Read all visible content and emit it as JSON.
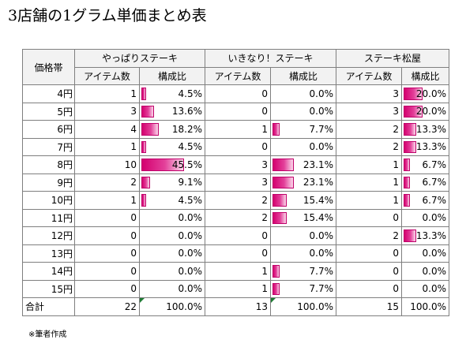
{
  "title": "3店舗の1グラム単価まとめ表",
  "table": {
    "row_header": "価格帯",
    "stores": [
      "やっぱりステーキ",
      "いきなり！ステーキ",
      "ステーキ松屋"
    ],
    "sub_headers": [
      "アイテム数",
      "構成比"
    ],
    "rows": [
      {
        "label": "4円",
        "cells": [
          {
            "count": "1",
            "pct": "4.5%",
            "v": 4.5
          },
          {
            "count": "0",
            "pct": "0.0%",
            "v": 0
          },
          {
            "count": "3",
            "pct": "20.0%",
            "v": 20.0
          }
        ]
      },
      {
        "label": "5円",
        "cells": [
          {
            "count": "3",
            "pct": "13.6%",
            "v": 13.6
          },
          {
            "count": "0",
            "pct": "0.0%",
            "v": 0
          },
          {
            "count": "3",
            "pct": "20.0%",
            "v": 20.0
          }
        ]
      },
      {
        "label": "6円",
        "cells": [
          {
            "count": "4",
            "pct": "18.2%",
            "v": 18.2
          },
          {
            "count": "1",
            "pct": "7.7%",
            "v": 7.7
          },
          {
            "count": "2",
            "pct": "13.3%",
            "v": 13.3
          }
        ]
      },
      {
        "label": "7円",
        "cells": [
          {
            "count": "1",
            "pct": "4.5%",
            "v": 4.5
          },
          {
            "count": "0",
            "pct": "0.0%",
            "v": 0
          },
          {
            "count": "2",
            "pct": "13.3%",
            "v": 13.3
          }
        ]
      },
      {
        "label": "8円",
        "cells": [
          {
            "count": "10",
            "pct": "45.5%",
            "v": 45.5
          },
          {
            "count": "3",
            "pct": "23.1%",
            "v": 23.1
          },
          {
            "count": "1",
            "pct": "6.7%",
            "v": 6.7
          }
        ]
      },
      {
        "label": "9円",
        "cells": [
          {
            "count": "2",
            "pct": "9.1%",
            "v": 9.1
          },
          {
            "count": "3",
            "pct": "23.1%",
            "v": 23.1
          },
          {
            "count": "1",
            "pct": "6.7%",
            "v": 6.7
          }
        ]
      },
      {
        "label": "10円",
        "cells": [
          {
            "count": "1",
            "pct": "4.5%",
            "v": 4.5
          },
          {
            "count": "2",
            "pct": "15.4%",
            "v": 15.4
          },
          {
            "count": "1",
            "pct": "6.7%",
            "v": 6.7
          }
        ]
      },
      {
        "label": "11円",
        "cells": [
          {
            "count": "0",
            "pct": "0.0%",
            "v": 0
          },
          {
            "count": "2",
            "pct": "15.4%",
            "v": 15.4
          },
          {
            "count": "0",
            "pct": "0.0%",
            "v": 0
          }
        ]
      },
      {
        "label": "12円",
        "cells": [
          {
            "count": "0",
            "pct": "0.0%",
            "v": 0
          },
          {
            "count": "0",
            "pct": "0.0%",
            "v": 0
          },
          {
            "count": "2",
            "pct": "13.3%",
            "v": 13.3
          }
        ]
      },
      {
        "label": "13円",
        "cells": [
          {
            "count": "0",
            "pct": "0.0%",
            "v": 0
          },
          {
            "count": "0",
            "pct": "0.0%",
            "v": 0
          },
          {
            "count": "0",
            "pct": "0.0%",
            "v": 0
          }
        ]
      },
      {
        "label": "14円",
        "cells": [
          {
            "count": "0",
            "pct": "0.0%",
            "v": 0
          },
          {
            "count": "1",
            "pct": "7.7%",
            "v": 7.7
          },
          {
            "count": "0",
            "pct": "0.0%",
            "v": 0
          }
        ]
      },
      {
        "label": "15円",
        "cells": [
          {
            "count": "0",
            "pct": "0.0%",
            "v": 0
          },
          {
            "count": "1",
            "pct": "7.7%",
            "v": 7.7
          },
          {
            "count": "0",
            "pct": "0.0%",
            "v": 0
          }
        ]
      }
    ],
    "total": {
      "label": "合計",
      "cells": [
        {
          "count": "22",
          "pct": "100.0%"
        },
        {
          "count": "13",
          "pct": "100.0%"
        },
        {
          "count": "15",
          "pct": "100.0%"
        }
      ]
    }
  },
  "note": "※筆者作成",
  "bar_color": "#d4006f",
  "border_color": "#7f7f7f",
  "header_bg": "#f2f2f2"
}
